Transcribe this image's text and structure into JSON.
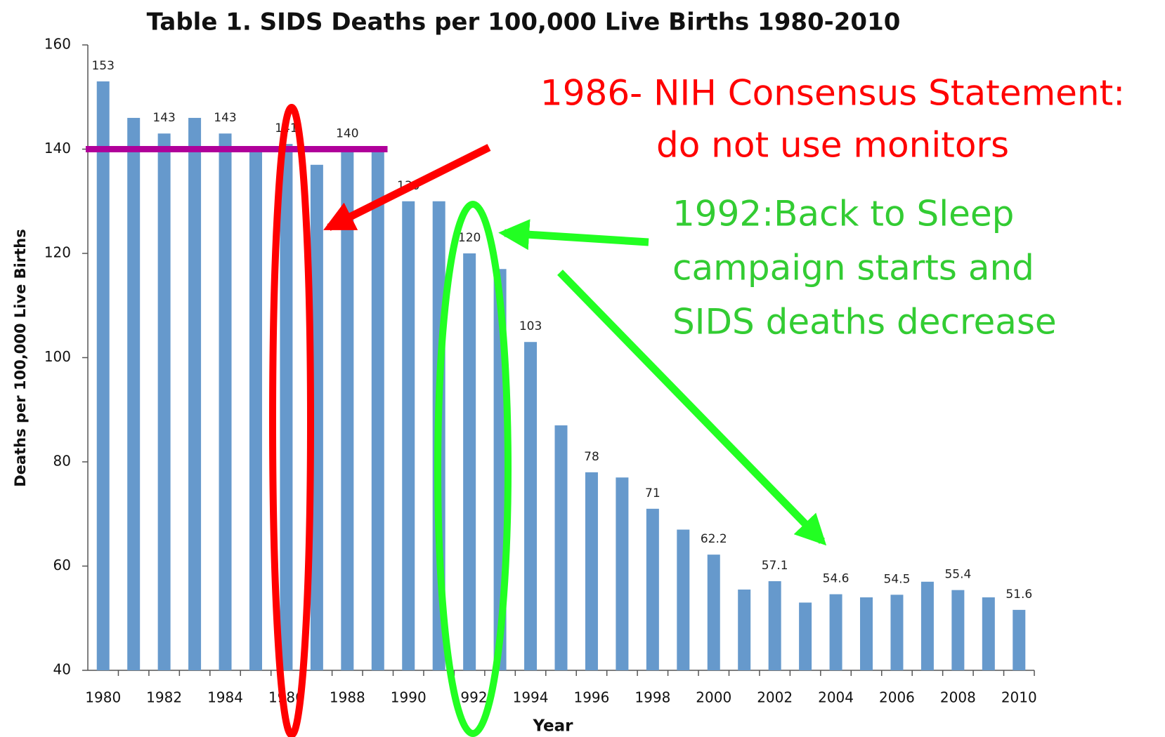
{
  "chart_data": {
    "type": "bar",
    "title": "Table 1. SIDS Deaths per 100,000 Live Births 1980-2010",
    "x_label": "Year",
    "y_label": "Deaths per 100,000 Live Births",
    "categories": [
      "1980",
      null,
      "1982",
      null,
      "1984",
      null,
      "1986",
      null,
      "1988",
      null,
      "1990",
      null,
      "1992",
      null,
      "1994",
      null,
      "1996",
      null,
      "1998",
      null,
      "2000",
      null,
      "2002",
      null,
      "2004",
      null,
      "2006",
      null,
      "2008",
      null,
      "2010"
    ],
    "values": [
      153,
      146,
      143,
      146,
      143,
      140,
      141,
      137,
      140,
      140,
      130,
      130,
      120,
      117,
      103,
      87,
      78,
      77,
      71,
      67,
      62.2,
      55.5,
      57.1,
      53,
      54.6,
      54,
      54.5,
      57,
      55.4,
      54,
      51.6
    ],
    "value_labels": [
      "153",
      null,
      "143",
      null,
      "143",
      null,
      "141",
      null,
      "140",
      null,
      "130",
      null,
      "120",
      null,
      "103",
      null,
      "78",
      null,
      "71",
      null,
      "62.2",
      null,
      "57.1",
      null,
      "54.6",
      null,
      "54.5",
      null,
      "55.4",
      null,
      "51.6"
    ],
    "color": "#6699cc",
    "ylim": [
      40,
      160
    ],
    "yticks": [
      40,
      60,
      80,
      100,
      120,
      140,
      160
    ],
    "reference_line": {
      "value": 140,
      "color": "#b0009a"
    },
    "annotations": {
      "nih": [
        "1986- NIH Consensus Statement:",
        "do not use monitors"
      ],
      "back_to_sleep": [
        "1992:Back to Sleep",
        "campaign starts and",
        "SIDS deaths decrease"
      ]
    }
  }
}
